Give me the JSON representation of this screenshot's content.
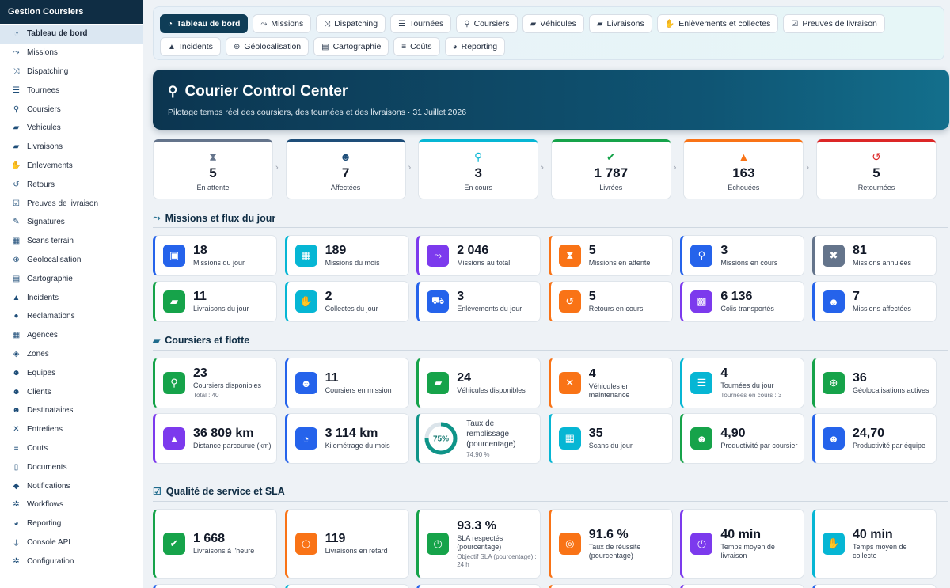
{
  "sidebar": {
    "title": "Gestion Coursiers",
    "items": [
      {
        "label": "Tableau de bord",
        "icon": "speedometer-icon",
        "glyph": "◔"
      },
      {
        "label": "Missions",
        "icon": "route-icon",
        "glyph": "⤳"
      },
      {
        "label": "Dispatching",
        "icon": "shuffle-icon",
        "glyph": "⤨"
      },
      {
        "label": "Tournees",
        "icon": "signs-icon",
        "glyph": "☰"
      },
      {
        "label": "Coursiers",
        "icon": "bicycle-icon",
        "glyph": "⚲"
      },
      {
        "label": "Vehicules",
        "icon": "truck-icon",
        "glyph": "▰"
      },
      {
        "label": "Livraisons",
        "icon": "truck-fast-icon",
        "glyph": "▰"
      },
      {
        "label": "Enlevements",
        "icon": "hand-holding-icon",
        "glyph": "✋"
      },
      {
        "label": "Retours",
        "icon": "undo-icon",
        "glyph": "↺"
      },
      {
        "label": "Preuves de livraison",
        "icon": "clipboard-check-icon",
        "glyph": "☑"
      },
      {
        "label": "Signatures",
        "icon": "signature-icon",
        "glyph": "✎"
      },
      {
        "label": "Scans terrain",
        "icon": "qrcode-icon",
        "glyph": "▦"
      },
      {
        "label": "Geolocalisation",
        "icon": "satellite-icon",
        "glyph": "⊕"
      },
      {
        "label": "Cartographie",
        "icon": "map-icon",
        "glyph": "▤"
      },
      {
        "label": "Incidents",
        "icon": "warning-icon",
        "glyph": "▲"
      },
      {
        "label": "Reclamations",
        "icon": "comment-icon",
        "glyph": "●"
      },
      {
        "label": "Agences",
        "icon": "building-icon",
        "glyph": "▦"
      },
      {
        "label": "Zones",
        "icon": "layers-icon",
        "glyph": "◈"
      },
      {
        "label": "Equipes",
        "icon": "users-icon",
        "glyph": "☻"
      },
      {
        "label": "Clients",
        "icon": "user-group-icon",
        "glyph": "☻"
      },
      {
        "label": "Destinataires",
        "icon": "user-tag-icon",
        "glyph": "☻"
      },
      {
        "label": "Entretiens",
        "icon": "tools-icon",
        "glyph": "✕"
      },
      {
        "label": "Couts",
        "icon": "coins-icon",
        "glyph": "≡"
      },
      {
        "label": "Documents",
        "icon": "file-icon",
        "glyph": "▯"
      },
      {
        "label": "Notifications",
        "icon": "bell-icon",
        "glyph": "◆"
      },
      {
        "label": "Workflows",
        "icon": "cogs-icon",
        "glyph": "✲"
      },
      {
        "label": "Reporting",
        "icon": "pie-chart-icon",
        "glyph": "◕"
      },
      {
        "label": "Console API",
        "icon": "plug-icon",
        "glyph": "⏚"
      },
      {
        "label": "Configuration",
        "icon": "gear-icon",
        "glyph": "✲"
      }
    ]
  },
  "tabs": [
    {
      "label": "Tableau de bord",
      "icon": "speedometer-icon",
      "glyph": "◔"
    },
    {
      "label": "Missions",
      "icon": "route-icon",
      "glyph": "⤳"
    },
    {
      "label": "Dispatching",
      "icon": "shuffle-icon",
      "glyph": "⤨"
    },
    {
      "label": "Tournées",
      "icon": "signs-icon",
      "glyph": "☰"
    },
    {
      "label": "Coursiers",
      "icon": "bicycle-icon",
      "glyph": "⚲"
    },
    {
      "label": "Véhicules",
      "icon": "truck-icon",
      "glyph": "▰"
    },
    {
      "label": "Livraisons",
      "icon": "truck-fast-icon",
      "glyph": "▰"
    },
    {
      "label": "Enlèvements et collectes",
      "icon": "hand-holding-icon",
      "glyph": "✋"
    },
    {
      "label": "Preuves de livraison",
      "icon": "clipboard-check-icon",
      "glyph": "☑"
    },
    {
      "label": "Incidents",
      "icon": "warning-icon",
      "glyph": "▲"
    },
    {
      "label": "Géolocalisation",
      "icon": "satellite-icon",
      "glyph": "⊕"
    },
    {
      "label": "Cartographie",
      "icon": "map-icon",
      "glyph": "▤"
    },
    {
      "label": "Coûts",
      "icon": "coins-icon",
      "glyph": "≡"
    },
    {
      "label": "Reporting",
      "icon": "pie-chart-icon",
      "glyph": "◕"
    }
  ],
  "hero": {
    "title": "Courier Control Center",
    "subtitle": "Pilotage temps réel des coursiers, des tournées et des livraisons · 31 Juillet 2026",
    "icon": "bicycle-icon"
  },
  "status": [
    {
      "value": "5",
      "label": "En attente",
      "color": "#64748b",
      "icon": "hourglass-icon",
      "glyph": "⧗"
    },
    {
      "value": "7",
      "label": "Affectées",
      "color": "#1e4e79",
      "icon": "user-check-icon",
      "glyph": "☻"
    },
    {
      "value": "3",
      "label": "En cours",
      "color": "#06b6d4",
      "icon": "bicycle-icon",
      "glyph": "⚲"
    },
    {
      "value": "1 787",
      "label": "Livrées",
      "color": "#16a34a",
      "icon": "check-circle-icon",
      "glyph": "✔"
    },
    {
      "value": "163",
      "label": "Échouées",
      "color": "#f97316",
      "icon": "warning-icon",
      "glyph": "▲"
    },
    {
      "value": "5",
      "label": "Retournées",
      "color": "#dc2626",
      "icon": "undo-icon",
      "glyph": "↺"
    }
  ],
  "sections": [
    {
      "title": "Missions et flux du jour",
      "icon": "route-icon",
      "glyph": "⤳"
    },
    {
      "title": "Coursiers et flotte",
      "icon": "truck-icon",
      "glyph": "▰"
    },
    {
      "title": "Qualité de service et SLA",
      "icon": "clipboard-check-icon",
      "glyph": "☑"
    }
  ],
  "missions": [
    {
      "value": "18",
      "label": "Missions du jour",
      "color": "#2563eb",
      "icon": "calendar-day-icon",
      "glyph": "▣"
    },
    {
      "value": "189",
      "label": "Missions du mois",
      "color": "#06b6d4",
      "icon": "calendar-icon",
      "glyph": "▦"
    },
    {
      "value": "2 046",
      "label": "Missions au total",
      "color": "#7c3aed",
      "icon": "route-icon",
      "glyph": "⤳"
    },
    {
      "value": "5",
      "label": "Missions en attente",
      "color": "#f97316",
      "icon": "hourglass-icon",
      "glyph": "⧗"
    },
    {
      "value": "3",
      "label": "Missions en cours",
      "color": "#2563eb",
      "icon": "bicycle-icon",
      "glyph": "⚲"
    },
    {
      "value": "81",
      "label": "Missions annulées",
      "color": "#64748b",
      "icon": "times-circle-icon",
      "glyph": "✖"
    },
    {
      "value": "11",
      "label": "Livraisons du jour",
      "color": "#16a34a",
      "icon": "truck-fast-icon",
      "glyph": "▰"
    },
    {
      "value": "2",
      "label": "Collectes du jour",
      "color": "#06b6d4",
      "icon": "hand-holding-icon",
      "glyph": "✋"
    },
    {
      "value": "3",
      "label": "Enlèvements du jour",
      "color": "#2563eb",
      "icon": "dolly-icon",
      "glyph": "⛟"
    },
    {
      "value": "5",
      "label": "Retours en cours",
      "color": "#f97316",
      "icon": "undo-icon",
      "glyph": "↺"
    },
    {
      "value": "6 136",
      "label": "Colis transportés",
      "color": "#7c3aed",
      "icon": "box-icon",
      "glyph": "▩"
    },
    {
      "value": "7",
      "label": "Missions affectées",
      "color": "#2563eb",
      "icon": "user-check-icon",
      "glyph": "☻"
    }
  ],
  "fleet": [
    {
      "value": "23",
      "label": "Coursiers disponibles",
      "note": "Total : 40",
      "color": "#16a34a",
      "icon": "bicycle-icon",
      "glyph": "⚲"
    },
    {
      "value": "11",
      "label": "Coursiers en mission",
      "note": "",
      "color": "#2563eb",
      "icon": "user-clock-icon",
      "glyph": "☻"
    },
    {
      "value": "24",
      "label": "Véhicules disponibles",
      "note": "",
      "color": "#16a34a",
      "icon": "truck-icon",
      "glyph": "▰"
    },
    {
      "value": "4",
      "label": "Véhicules en maintenance",
      "note": "",
      "color": "#f97316",
      "icon": "tools-icon",
      "glyph": "✕"
    },
    {
      "value": "4",
      "label": "Tournées du jour",
      "note": "Tournées en cours : 3",
      "color": "#06b6d4",
      "icon": "signs-icon",
      "glyph": "☰"
    },
    {
      "value": "36",
      "label": "Géolocalisations actives",
      "note": "",
      "color": "#16a34a",
      "icon": "satellite-icon",
      "glyph": "⊕"
    },
    {
      "value": "36 809 km",
      "label": "Distance parcourue (km)",
      "note": "",
      "color": "#7c3aed",
      "icon": "road-icon",
      "glyph": "▲"
    },
    {
      "value": "3 114 km",
      "label": "Kilométrage du mois",
      "note": "",
      "color": "#2563eb",
      "icon": "speedometer-icon",
      "glyph": "◔"
    },
    {
      "value": "",
      "label": "Taux de remplissage (pourcentage)",
      "note": "74,90 %",
      "color": "#0f9488",
      "icon": "donut-chart",
      "glyph": "",
      "donut": {
        "text": "75%",
        "fraction": 0.749
      }
    },
    {
      "value": "35",
      "label": "Scans du jour",
      "note": "",
      "color": "#06b6d4",
      "icon": "qrcode-icon",
      "glyph": "▦"
    },
    {
      "value": "4,90",
      "label": "Productivité par coursier",
      "note": "",
      "color": "#16a34a",
      "icon": "user-icon",
      "glyph": "☻"
    },
    {
      "value": "24,70",
      "label": "Productivité par équipe",
      "note": "",
      "color": "#2563eb",
      "icon": "users-icon",
      "glyph": "☻"
    }
  ],
  "quality": [
    {
      "value": "1 668",
      "label": "Livraisons à l'heure",
      "note": "",
      "color": "#16a34a",
      "icon": "check-circle-icon",
      "glyph": "✔"
    },
    {
      "value": "119",
      "label": "Livraisons en retard",
      "note": "",
      "color": "#f97316",
      "icon": "clock-icon",
      "glyph": "◷"
    },
    {
      "value": "93.3 %",
      "label": "SLA respectés (pourcentage)",
      "note": "Objectif SLA (pourcentage) : 24 h",
      "color": "#16a34a",
      "icon": "stopwatch-icon",
      "glyph": "◷"
    },
    {
      "value": "91.6 %",
      "label": "Taux de réussite (pourcentage)",
      "note": "",
      "color": "#f97316",
      "icon": "bullseye-icon",
      "glyph": "◎"
    },
    {
      "value": "40 min",
      "label": "Temps moyen de livraison",
      "note": "",
      "color": "#7c3aed",
      "icon": "clock-icon",
      "glyph": "◷"
    },
    {
      "value": "40 min",
      "label": "Temps moyen de collecte",
      "note": "",
      "color": "#06b6d4",
      "icon": "hand-holding-icon",
      "glyph": "✋"
    }
  ],
  "partial_row_colors": [
    "#2563eb",
    "#06b6d4",
    "#2563eb",
    "#f97316",
    "#7c3aed",
    "#2563eb"
  ]
}
